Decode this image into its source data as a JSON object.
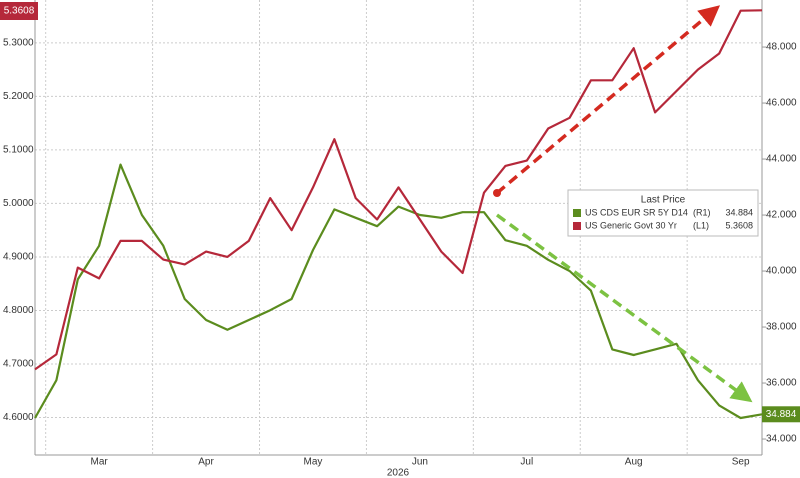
{
  "chart_data": {
    "type": "line",
    "categories": [
      null,
      null,
      null,
      "Mar",
      null,
      null,
      null,
      null,
      "Apr",
      null,
      null,
      null,
      null,
      "May",
      null,
      null,
      null,
      null,
      "Jun",
      null,
      null,
      null,
      null,
      "Jul",
      null,
      null,
      null,
      null,
      "Aug",
      null,
      null,
      null,
      null,
      "Sep",
      null
    ],
    "xlabel": "2026",
    "legend_title": "Last Price",
    "series": [
      {
        "name": "US CDS EUR SR 5Y D14",
        "axis_label": "(R1)",
        "axis": "y2",
        "color": "#5b8c1e",
        "values": [
          34.75,
          36.1,
          39.7,
          40.9,
          43.8,
          42.0,
          40.9,
          39.0,
          38.25,
          37.9,
          38.25,
          38.6,
          39.0,
          40.75,
          42.2,
          41.9,
          41.6,
          42.3,
          42.0,
          41.9,
          42.1,
          42.1,
          41.1,
          40.9,
          40.4,
          40.0,
          39.3,
          37.2,
          37.0,
          37.2,
          37.4,
          36.1,
          35.2,
          34.75,
          34.884
        ],
        "value_labels": [
          null,
          null,
          null,
          null,
          null,
          null,
          null,
          null,
          null,
          null,
          null,
          null,
          null,
          null,
          null,
          null,
          null,
          null,
          null,
          null,
          null,
          null,
          null,
          null,
          null,
          null,
          null,
          null,
          null,
          null,
          null,
          null,
          null,
          null,
          "34.884"
        ]
      },
      {
        "name": "US Generic Govt 30 Yr",
        "axis_label": "(L1)",
        "color": "#b5283a",
        "values": [
          4.69,
          4.718,
          4.88,
          4.86,
          4.93,
          4.93,
          4.895,
          4.886,
          4.91,
          4.9,
          4.93,
          5.01,
          4.95,
          5.03,
          5.12,
          5.01,
          4.97,
          5.03,
          4.97,
          4.91,
          4.87,
          5.02,
          5.07,
          5.08,
          5.14,
          5.16,
          5.23,
          5.23,
          5.29,
          5.17,
          5.21,
          5.25,
          5.28,
          5.36,
          5.3608
        ],
        "value_labels": [
          null,
          null,
          null,
          null,
          null,
          null,
          null,
          null,
          null,
          null,
          null,
          null,
          null,
          null,
          null,
          null,
          null,
          null,
          null,
          null,
          null,
          null,
          null,
          null,
          null,
          null,
          null,
          null,
          null,
          null,
          null,
          null,
          null,
          null,
          "5.3608"
        ]
      }
    ],
    "ylim": [
      4.53,
      5.38
    ],
    "yticks": [
      {
        "value": 4.6,
        "label": "4.6000"
      },
      {
        "value": 4.7,
        "label": "4.7000"
      },
      {
        "value": 4.8,
        "label": "4.8000"
      },
      {
        "value": 4.9,
        "label": "4.9000"
      },
      {
        "value": 5.0,
        "label": "5.0000"
      },
      {
        "value": 5.1,
        "label": "5.1000"
      },
      {
        "value": 5.2,
        "label": "5.2000"
      },
      {
        "value": 5.3,
        "label": "5.3000"
      }
    ],
    "y2lim": [
      33.43,
      49.68
    ],
    "y2ticks": [
      {
        "value": 34,
        "label": "34.000"
      },
      {
        "value": 36,
        "label": "36.000"
      },
      {
        "value": 38,
        "label": "38.000"
      },
      {
        "value": 40,
        "label": "40.000"
      },
      {
        "value": 42,
        "label": "42.000"
      },
      {
        "value": 44,
        "label": "44.000"
      },
      {
        "value": 46,
        "label": "46.000"
      },
      {
        "value": 48,
        "label": "48.000"
      }
    ],
    "grid": true
  }
}
